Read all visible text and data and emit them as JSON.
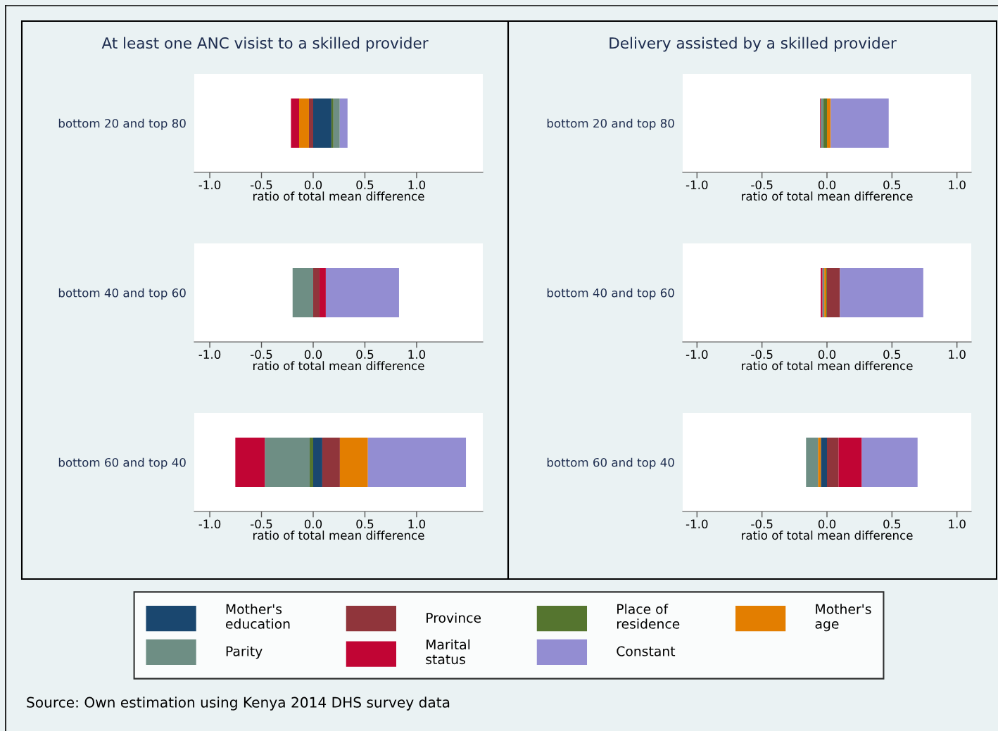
{
  "chart_data": [
    {
      "type": "bar",
      "orientation": "horizontal",
      "stacked": true,
      "title": "At least one ANC visist to a skilled provider",
      "categories": [
        "bottom 20 and top 80"
      ],
      "xlabel": "ratio of total mean difference",
      "xlim": [
        -1.15,
        1.64
      ],
      "xticks": [
        {
          "value": -1,
          "label": "-1.0"
        },
        {
          "value": -0.5,
          "label": "-0.5"
        },
        {
          "value": 0,
          "label": "0.0"
        },
        {
          "value": 0.5,
          "label": "0.5"
        },
        {
          "value": 1,
          "label": "1.0"
        }
      ],
      "legend": "bottom",
      "annotations": [
        "Source: Own estimation using Kenya 2014 DHS survey data"
      ],
      "series": [
        {
          "name": "Mother's\neducation",
          "color": "#1a476f",
          "values": [
            0.176
          ]
        },
        {
          "name": "Province",
          "color": "#90353b",
          "values": [
            -0.041
          ]
        },
        {
          "name": "Place of\nresidence",
          "color": "#55752f",
          "values": [
            0.02
          ]
        },
        {
          "name": "Mother's\nage",
          "color": "#e37e00",
          "values": [
            -0.095
          ]
        },
        {
          "name": "Parity",
          "color": "#6e8e84",
          "values": [
            0.061
          ]
        },
        {
          "name": "Marital\nstatus",
          "color": "#c10534",
          "values": [
            -0.079
          ]
        },
        {
          "name": "Constant",
          "color": "#938dd2",
          "values": [
            0.075
          ]
        }
      ]
    },
    {
      "type": "bar",
      "orientation": "horizontal",
      "stacked": true,
      "categories": [
        "bottom 40 and top 60"
      ],
      "xlabel": "ratio of total mean difference",
      "xlim": [
        -1.15,
        1.64
      ],
      "xticks": [
        {
          "value": -1,
          "label": "-1.0"
        },
        {
          "value": -0.5,
          "label": "-0.5"
        },
        {
          "value": 0,
          "label": "0.0"
        },
        {
          "value": 0.5,
          "label": "0.5"
        },
        {
          "value": 1,
          "label": "1.0"
        }
      ],
      "series": [
        {
          "name": "Mother's\neducation",
          "color": "#1a476f",
          "values": [
            0
          ]
        },
        {
          "name": "Province",
          "color": "#90353b",
          "values": [
            0.061
          ]
        },
        {
          "name": "Place of\nresidence",
          "color": "#55752f",
          "values": [
            0
          ]
        },
        {
          "name": "Mother's\nage",
          "color": "#e37e00",
          "values": [
            0
          ]
        },
        {
          "name": "Parity",
          "color": "#6e8e84",
          "values": [
            -0.199
          ]
        },
        {
          "name": "Marital\nstatus",
          "color": "#c10534",
          "values": [
            0.061
          ]
        },
        {
          "name": "Constant",
          "color": "#938dd2",
          "values": [
            0.708
          ]
        }
      ]
    },
    {
      "type": "bar",
      "orientation": "horizontal",
      "stacked": true,
      "categories": [
        "bottom 60 and top 40"
      ],
      "xlabel": "ratio of total mean difference",
      "xlim": [
        -1.15,
        1.64
      ],
      "xticks": [
        {
          "value": -1,
          "label": "-1.0"
        },
        {
          "value": -0.5,
          "label": "-0.5"
        },
        {
          "value": 0,
          "label": "0.0"
        },
        {
          "value": 0.5,
          "label": "0.5"
        },
        {
          "value": 1,
          "label": "1.0"
        }
      ],
      "series": [
        {
          "name": "Mother's\neducation",
          "color": "#1a476f",
          "values": [
            0.088
          ]
        },
        {
          "name": "Province",
          "color": "#90353b",
          "values": [
            0.17
          ]
        },
        {
          "name": "Place of\nresidence",
          "color": "#55752f",
          "values": [
            -0.034
          ]
        },
        {
          "name": "Mother's\nage",
          "color": "#e37e00",
          "values": [
            0.271
          ]
        },
        {
          "name": "Parity",
          "color": "#6e8e84",
          "values": [
            -0.434
          ]
        },
        {
          "name": "Marital\nstatus",
          "color": "#c10534",
          "values": [
            -0.285
          ]
        },
        {
          "name": "Constant",
          "color": "#938dd2",
          "values": [
            0.948
          ]
        }
      ]
    },
    {
      "type": "bar",
      "orientation": "horizontal",
      "stacked": true,
      "title": "Delivery assisted by a skilled provider",
      "categories": [
        "bottom 20 and top 80"
      ],
      "xlabel": "ratio of total mean difference",
      "xlim": [
        -1.11,
        1.11
      ],
      "xticks": [
        {
          "value": -1,
          "label": "-1.0"
        },
        {
          "value": -0.5,
          "label": "-0.5"
        },
        {
          "value": 0,
          "label": "0.0"
        },
        {
          "value": 0.5,
          "label": "0.5"
        },
        {
          "value": 1,
          "label": "1.0"
        }
      ],
      "series": [
        {
          "name": "Mother's\neducation",
          "color": "#1a476f",
          "values": [
            0
          ]
        },
        {
          "name": "Province",
          "color": "#90353b",
          "values": [
            0
          ]
        },
        {
          "name": "Place of\nresidence",
          "color": "#55752f",
          "values": [
            -0.028
          ]
        },
        {
          "name": "Mother's\nage",
          "color": "#e37e00",
          "values": [
            0.029
          ]
        },
        {
          "name": "Parity",
          "color": "#6e8e84",
          "values": [
            -0.02
          ]
        },
        {
          "name": "Marital\nstatus",
          "color": "#c10534",
          "values": [
            -0.005
          ]
        },
        {
          "name": "Constant",
          "color": "#938dd2",
          "values": [
            0.446
          ]
        }
      ]
    },
    {
      "type": "bar",
      "orientation": "horizontal",
      "stacked": true,
      "categories": [
        "bottom 40 and top 60"
      ],
      "xlabel": "ratio of total mean difference",
      "xlim": [
        -1.11,
        1.11
      ],
      "xticks": [
        {
          "value": -1,
          "label": "-1.0"
        },
        {
          "value": -0.5,
          "label": "-0.5"
        },
        {
          "value": 0,
          "label": "0.0"
        },
        {
          "value": 0.5,
          "label": "0.5"
        },
        {
          "value": 1,
          "label": "1.0"
        }
      ],
      "series": [
        {
          "name": "Mother's\neducation",
          "color": "#1a476f",
          "values": [
            0
          ]
        },
        {
          "name": "Province",
          "color": "#90353b",
          "values": [
            0.1
          ]
        },
        {
          "name": "Place of\nresidence",
          "color": "#55752f",
          "values": [
            -0.005
          ]
        },
        {
          "name": "Mother's\nage",
          "color": "#e37e00",
          "values": [
            -0.016
          ]
        },
        {
          "name": "Parity",
          "color": "#6e8e84",
          "values": [
            -0.014
          ]
        },
        {
          "name": "Marital\nstatus",
          "color": "#c10534",
          "values": [
            -0.013
          ]
        },
        {
          "name": "Constant",
          "color": "#938dd2",
          "values": [
            0.641
          ]
        }
      ]
    },
    {
      "type": "bar",
      "orientation": "horizontal",
      "stacked": true,
      "categories": [
        "bottom 60 and top 40"
      ],
      "xlabel": "ratio of total mean difference",
      "xlim": [
        -1.11,
        1.11
      ],
      "xticks": [
        {
          "value": -1,
          "label": "-1.0"
        },
        {
          "value": -0.5,
          "label": "-0.5"
        },
        {
          "value": 0,
          "label": "0.0"
        },
        {
          "value": 0.5,
          "label": "0.5"
        },
        {
          "value": 1,
          "label": "1.0"
        }
      ],
      "series": [
        {
          "name": "Mother's\neducation",
          "color": "#1a476f",
          "values": [
            -0.047
          ]
        },
        {
          "name": "Province",
          "color": "#90353b",
          "values": [
            0.089
          ]
        },
        {
          "name": "Place of\nresidence",
          "color": "#55752f",
          "values": [
            0
          ]
        },
        {
          "name": "Mother's\nage",
          "color": "#e37e00",
          "values": [
            -0.022
          ]
        },
        {
          "name": "Parity",
          "color": "#6e8e84",
          "values": [
            -0.092
          ]
        },
        {
          "name": "Marital\nstatus",
          "color": "#c10534",
          "values": [
            0.179
          ]
        },
        {
          "name": "Constant",
          "color": "#938dd2",
          "values": [
            0.429
          ]
        }
      ]
    }
  ]
}
